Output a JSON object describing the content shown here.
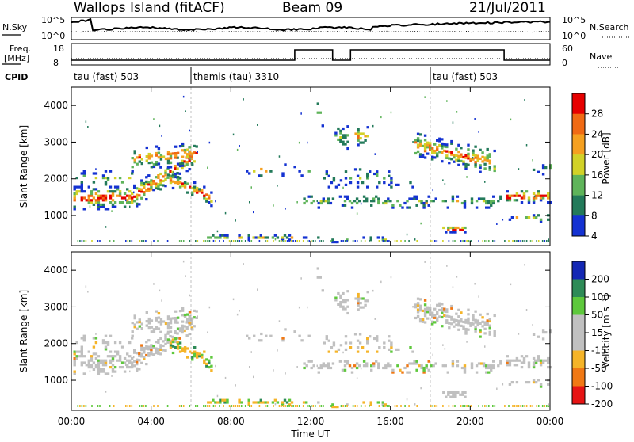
{
  "header": {
    "station": "Wallops Island (fitACF)",
    "beam": "Beam 09",
    "date": "21/Jul/2011"
  },
  "top_panels": {
    "nsky_label": "N.Sky",
    "nsky_ticks": [
      "10^5",
      "10^0"
    ],
    "nsearch_label": "N.Search",
    "nsearch_ticks": [
      "10^5",
      "10^0"
    ],
    "freq_label": "Freq.",
    "freq_unit": "[MHz]",
    "freq_ticks": [
      "18",
      "8"
    ],
    "nave_label": "Nave",
    "nave_ticks": [
      "60",
      "0"
    ],
    "cpid_label": "CPID",
    "cpid_segments": [
      {
        "start_hour": 0,
        "label": "tau (fast) 503"
      },
      {
        "start_hour": 6,
        "label": "themis (tau) 3310"
      },
      {
        "start_hour": 18,
        "label": "tau (fast) 503"
      }
    ]
  },
  "chart_data": [
    {
      "type": "heatmap",
      "name": "power-panel",
      "ylabel": "Slant Range [km]",
      "y_ticks": [
        "1000",
        "2000",
        "3000",
        "4000"
      ],
      "ylim": [
        180,
        4500
      ],
      "x_range_hours": [
        0,
        24
      ],
      "colorbar_label": "Power [dB]",
      "colorbar_ticks": [
        "4",
        "8",
        "12",
        "16",
        "20",
        "24",
        "28"
      ],
      "colors": [
        "#1432d2",
        "#237a5a",
        "#5fb45a",
        "#d2d228",
        "#f5a020",
        "#f06a14",
        "#e60000"
      ]
    },
    {
      "type": "heatmap",
      "name": "velocity-panel",
      "ylabel": "Slant Range [km]",
      "y_ticks": [
        "1000",
        "2000",
        "3000",
        "4000"
      ],
      "ylim": [
        180,
        4500
      ],
      "x_range_hours": [
        0,
        24
      ],
      "colorbar_label": "Velocity [m s⁻¹]",
      "colorbar_ticks": [
        "200",
        "100",
        "50",
        "15",
        "-15",
        "-50",
        "-100",
        "-200"
      ],
      "colors": [
        "#1428b4",
        "#2e8b57",
        "#5ec83c",
        "#c0c0c0",
        "#c0c0c0",
        "#f5b428",
        "#f07814",
        "#e61414"
      ]
    }
  ],
  "x_axis": {
    "label": "Time UT",
    "ticks": [
      "00:00",
      "04:00",
      "08:00",
      "12:00",
      "16:00",
      "20:00",
      "00:00"
    ]
  }
}
